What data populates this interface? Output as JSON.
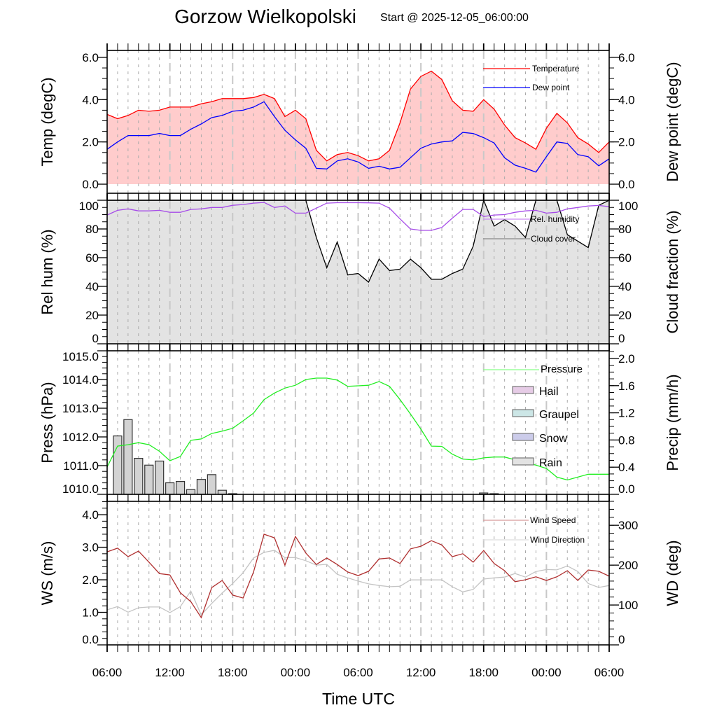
{
  "chart_data": {
    "type": "line",
    "title": "Gorzow Wielkopolski",
    "subtitle": "Start @ 2025-12-05_06:00:00",
    "xlabel": "Time UTC",
    "x_unit": "hours since start",
    "x_range": [
      0,
      48
    ],
    "x_ticks": [
      {
        "hour": 0,
        "label": "06:00"
      },
      {
        "hour": 6,
        "label": "12:00"
      },
      {
        "hour": 12,
        "label": "18:00"
      },
      {
        "hour": 18,
        "label": "00:00"
      },
      {
        "hour": 24,
        "label": "06:00"
      },
      {
        "hour": 30,
        "label": "12:00"
      },
      {
        "hour": 36,
        "label": "18:00"
      },
      {
        "hour": 42,
        "label": "00:00"
      },
      {
        "hour": 48,
        "label": "06:00"
      }
    ],
    "grid": "vertical dashed hourly",
    "panels": [
      {
        "id": "temperature",
        "left_label": "Temp (degC)",
        "right_label": "Dew point (degC)",
        "left_range": [
          -0.43,
          6.33
        ],
        "right_range": [
          -0.43,
          6.33
        ],
        "left_ticks": [
          {
            "value": 0,
            "label": "0.0"
          },
          {
            "value": 2,
            "label": "2.0"
          },
          {
            "value": 4,
            "label": "4.0"
          },
          {
            "value": 6,
            "label": "6.0"
          }
        ],
        "right_ticks": [
          {
            "value": 0,
            "label": "0.0"
          },
          {
            "value": 2,
            "label": "2.0"
          },
          {
            "value": 4,
            "label": "4.0"
          },
          {
            "value": 6,
            "label": "6.0"
          }
        ],
        "minor_step_left": 0.5,
        "minor_step_right": 0.5,
        "series": [
          {
            "name": "Temperature",
            "kind": "line",
            "axis": "left",
            "color": "#ff0000",
            "fill": "#ffcccc",
            "values": [
              3.3,
              3.1,
              3.25,
              3.5,
              3.45,
              3.5,
              3.65,
              3.65,
              3.65,
              3.8,
              3.9,
              4.05,
              4.05,
              4.05,
              4.1,
              4.25,
              4.05,
              3.2,
              3.5,
              3.1,
              1.6,
              1.1,
              1.4,
              1.5,
              1.35,
              1.1,
              1.2,
              1.6,
              2.9,
              4.5,
              5.1,
              5.35,
              4.95,
              3.95,
              3.5,
              3.45,
              4.0,
              3.55,
              2.8,
              2.2,
              1.95,
              1.65,
              2.65,
              3.35,
              2.9,
              2.2,
              1.9,
              1.5,
              2.0
            ]
          },
          {
            "name": "Dew point",
            "kind": "line",
            "axis": "right",
            "color": "#0000ff",
            "values": [
              1.65,
              2.0,
              2.3,
              2.3,
              2.3,
              2.4,
              2.3,
              2.3,
              2.6,
              2.85,
              3.15,
              3.25,
              3.45,
              3.5,
              3.65,
              3.9,
              3.2,
              2.55,
              2.1,
              1.7,
              0.75,
              0.72,
              1.1,
              1.2,
              1.05,
              0.75,
              0.85,
              0.72,
              0.8,
              1.25,
              1.7,
              1.9,
              2.0,
              2.05,
              2.45,
              2.4,
              2.2,
              1.95,
              1.25,
              0.9,
              0.75,
              0.57,
              1.3,
              2.0,
              1.93,
              1.4,
              1.3,
              0.87,
              1.2
            ]
          }
        ],
        "legend": [
          {
            "label": "Temperature",
            "color": "#ff0000",
            "kind": "line"
          },
          {
            "label": "Dew point",
            "color": "#0000ff",
            "kind": "line"
          }
        ]
      },
      {
        "id": "humidity",
        "left_label": "Rel hum (%)",
        "right_label": "Cloud fraction (%)",
        "left_range": [
          0,
          100
        ],
        "right_range": [
          0,
          100
        ],
        "left_ticks": [
          {
            "value": 0,
            "label": "0"
          },
          {
            "value": 20,
            "label": "20"
          },
          {
            "value": 40,
            "label": "40"
          },
          {
            "value": 60,
            "label": "60"
          },
          {
            "value": 80,
            "label": "80"
          },
          {
            "value": 100,
            "label": "100"
          }
        ],
        "right_ticks": [
          {
            "value": 0,
            "label": "0"
          },
          {
            "value": 20,
            "label": "20"
          },
          {
            "value": 40,
            "label": "40"
          },
          {
            "value": 60,
            "label": "60"
          },
          {
            "value": 80,
            "label": "80"
          },
          {
            "value": 100,
            "label": "100"
          }
        ],
        "minor_step_left": 5,
        "minor_step_right": 5,
        "series": [
          {
            "name": "Cloud cover",
            "kind": "line",
            "axis": "right",
            "color": "#000000",
            "fill": "#e3e3e3",
            "values": [
              100,
              100,
              100,
              100,
              100,
              100,
              100,
              100,
              100,
              100,
              100,
              100,
              100,
              100,
              100,
              100,
              100,
              100,
              100,
              100,
              74,
              53,
              71,
              48,
              49,
              43,
              59,
              51,
              52,
              59,
              53,
              45,
              45,
              49,
              52,
              68,
              100,
              82,
              86.5,
              82,
              74,
              100,
              100,
              100,
              76,
              71.5,
              67,
              96.5,
              100
            ]
          },
          {
            "name": "Rel. humidity",
            "kind": "line",
            "axis": "left",
            "color": "#a64ce8",
            "values": [
              89.7,
              93,
              94,
              92.6,
              92.6,
              93,
              91.6,
              91.6,
              93.6,
              94,
              95,
              95,
              96.5,
              97,
              98,
              98.5,
              95,
              96,
              91,
              91,
              94.5,
              98,
              98.3,
              98.3,
              98.3,
              98.2,
              98,
              94.5,
              87,
              80,
              79,
              79,
              81,
              87.5,
              93.6,
              93.6,
              88.7,
              89.7,
              90,
              91.6,
              92.6,
              93,
              91,
              91.6,
              94,
              95,
              96,
              96.4,
              95.5
            ]
          }
        ],
        "legend": [
          {
            "label": "Rel. humidity",
            "color": "#c98af2",
            "kind": "line"
          },
          {
            "label": "Cloud cover",
            "color": "#888888",
            "kind": "line"
          }
        ]
      },
      {
        "id": "pressure",
        "left_label": "Press (hPa)",
        "right_label": "Precip (mm/h)",
        "left_range": [
          1010,
          1015
        ],
        "right_range": [
          0,
          2.113
        ],
        "left_ticks": [
          {
            "value": 1010,
            "label": "1010.0"
          },
          {
            "value": 1011,
            "label": "1011.0"
          },
          {
            "value": 1012,
            "label": "1012.0"
          },
          {
            "value": 1013,
            "label": "1013.0"
          },
          {
            "value": 1014,
            "label": "1014.0"
          },
          {
            "value": 1015,
            "label": "1015.0"
          }
        ],
        "right_ticks": [
          {
            "value": 0,
            "label": "0.0"
          },
          {
            "value": 0.4,
            "label": "0.4"
          },
          {
            "value": 0.8,
            "label": "0.8"
          },
          {
            "value": 1.2,
            "label": "1.2"
          },
          {
            "value": 1.6,
            "label": "1.6"
          },
          {
            "value": 2.0,
            "label": "2.0"
          }
        ],
        "minor_step_left": 0.2,
        "minor_step_right": 0.1,
        "series": [
          {
            "name": "Rain",
            "kind": "bar",
            "axis": "right",
            "color": "#333333",
            "fill": "#d3d3d3",
            "values": [
              0,
              0.86,
              1.1,
              0.53,
              0.43,
              0.49,
              0.17,
              0.19,
              0.07,
              0.22,
              0.29,
              0.06,
              0.01,
              0,
              0,
              0,
              0,
              0,
              0,
              0,
              0,
              0,
              0,
              0,
              0,
              0,
              0,
              0,
              0,
              0,
              0,
              0,
              0,
              0,
              0,
              0,
              0.02,
              0.01,
              0,
              0,
              0,
              0,
              0,
              0,
              0,
              0,
              0,
              0,
              0
            ]
          },
          {
            "name": "Pressure",
            "kind": "line",
            "axis": "left",
            "color": "#22ee22",
            "values": [
              1010.95,
              1011.68,
              1011.73,
              1011.8,
              1011.73,
              1011.5,
              1011.17,
              1011.32,
              1011.88,
              1011.93,
              1012.12,
              1012.2,
              1012.3,
              1012.56,
              1012.83,
              1013.3,
              1013.53,
              1013.7,
              1013.8,
              1014.0,
              1014.05,
              1014.05,
              1013.98,
              1013.76,
              1013.78,
              1013.8,
              1013.93,
              1013.76,
              1013.3,
              1012.8,
              1012.27,
              1011.68,
              1011.67,
              1011.4,
              1011.23,
              1011.2,
              1011.27,
              1011.3,
              1011.3,
              1011.2,
              1011.1,
              1011.02,
              1010.9,
              1010.6,
              1010.5,
              1010.6,
              1010.7,
              1010.7,
              1010.7
            ]
          }
        ],
        "legend": [
          {
            "label": "Pressure",
            "color": "#88ff88",
            "kind": "line"
          },
          {
            "label": "Hail",
            "color": "#777777",
            "fill": "#e6cce6",
            "kind": "box"
          },
          {
            "label": "Graupel",
            "color": "#777777",
            "fill": "#cce6e6",
            "kind": "box"
          },
          {
            "label": "Snow",
            "color": "#777777",
            "fill": "#ccccea",
            "kind": "box"
          },
          {
            "label": "Rain",
            "color": "#777777",
            "fill": "#e3e3e3",
            "kind": "box"
          }
        ]
      },
      {
        "id": "wind",
        "left_label": "WS (m/s)",
        "right_label": "WD (deg)",
        "left_range": [
          0,
          4.41
        ],
        "right_range": [
          0,
          360
        ],
        "left_ticks": [
          {
            "value": 0,
            "label": "0.0"
          },
          {
            "value": 1,
            "label": "1.0"
          },
          {
            "value": 2,
            "label": "2.0"
          },
          {
            "value": 3,
            "label": "3.0"
          },
          {
            "value": 4,
            "label": "4.0"
          }
        ],
        "right_ticks": [
          {
            "value": 0,
            "label": "0"
          },
          {
            "value": 100,
            "label": "100"
          },
          {
            "value": 200,
            "label": "200"
          },
          {
            "value": 300,
            "label": "300"
          }
        ],
        "minor_step_left": 0.2,
        "minor_step_right": 20,
        "series": [
          {
            "name": "Wind Direction",
            "kind": "line",
            "axis": "right",
            "color": "#c4c4c4",
            "values": [
              88,
              96,
              82,
              93,
              95,
              95,
              81,
              96,
              135,
              75,
              104,
              130,
              154,
              181,
              218,
              232,
              237,
              219,
              219,
              211,
              200,
              202,
              177,
              168,
              160,
              153,
              149,
              146,
              147,
              163,
              163,
              163,
              163,
              146,
              133,
              139,
              165,
              168,
              170,
              179,
              170,
              184,
              189,
              188,
              198,
              184,
              154,
              144,
              149
            ]
          },
          {
            "name": "Wind Speed",
            "kind": "line",
            "axis": "left",
            "color": "#b03030",
            "values": [
              2.86,
              2.97,
              2.71,
              2.88,
              2.54,
              2.19,
              2.15,
              1.6,
              1.33,
              0.84,
              1.76,
              1.98,
              1.53,
              1.44,
              2.24,
              3.4,
              3.29,
              2.45,
              3.33,
              2.82,
              2.47,
              2.67,
              2.47,
              2.24,
              2.13,
              2.26,
              2.64,
              2.67,
              2.5,
              2.95,
              3.03,
              3.2,
              3.07,
              2.71,
              2.8,
              2.54,
              2.9,
              2.5,
              2.28,
              1.94,
              2.0,
              2.09,
              1.98,
              2.09,
              2.28,
              1.98,
              2.3,
              2.26,
              2.11
            ]
          }
        ],
        "legend": [
          {
            "label": "Wind Speed",
            "color": "#d89a9a",
            "kind": "line"
          },
          {
            "label": "Wind Direction",
            "color": "#dddddd",
            "kind": "line"
          }
        ]
      }
    ]
  }
}
